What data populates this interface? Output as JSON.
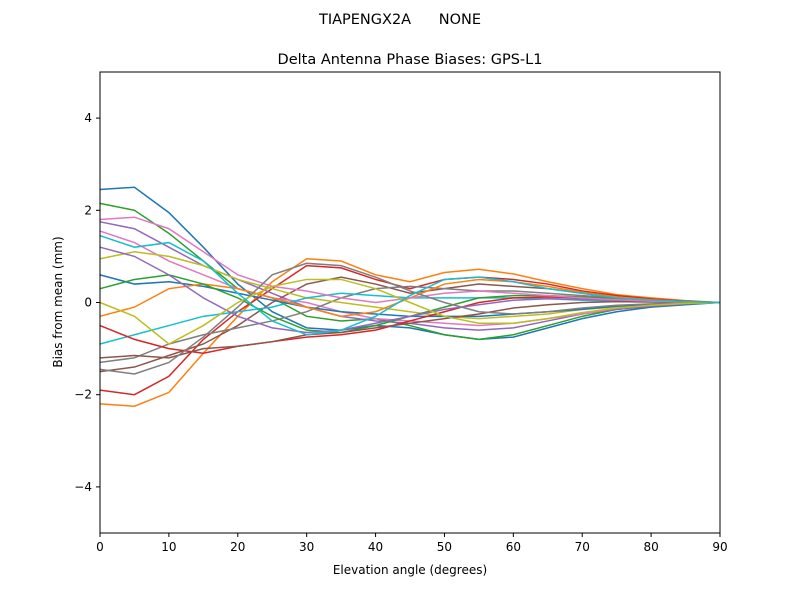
{
  "suptitle": "TIAPENGX2A      NONE",
  "chart_data": {
    "type": "line",
    "title": "Delta Antenna Phase Biases: GPS-L1",
    "xlabel": "Elevation angle (degrees)",
    "ylabel": "Bias from mean (mm)",
    "xlim": [
      0,
      90
    ],
    "ylim": [
      -5,
      5
    ],
    "xticks": [
      "0",
      "10",
      "20",
      "30",
      "40",
      "50",
      "60",
      "70",
      "80",
      "90"
    ],
    "yticks": [
      "−4",
      "−2",
      "0",
      "2",
      "4"
    ],
    "grid": false,
    "colors": [
      "#1f77b4",
      "#ff7f0e",
      "#2ca02c",
      "#d62728",
      "#9467bd",
      "#8c564b",
      "#e377c2",
      "#7f7f7f",
      "#bcbd22",
      "#17becf"
    ],
    "x": [
      0,
      5,
      10,
      15,
      20,
      25,
      30,
      35,
      40,
      45,
      50,
      55,
      60,
      65,
      70,
      75,
      80,
      85,
      90
    ],
    "series": [
      {
        "values": [
          2.45,
          2.5,
          1.95,
          1.2,
          0.4,
          -0.2,
          -0.55,
          -0.6,
          -0.5,
          -0.55,
          -0.7,
          -0.8,
          -0.75,
          -0.55,
          -0.35,
          -0.2,
          -0.1,
          -0.05,
          0
        ]
      },
      {
        "values": [
          -2.2,
          -2.25,
          -1.95,
          -1.1,
          -0.3,
          0.45,
          0.95,
          0.9,
          0.6,
          0.45,
          0.65,
          0.72,
          0.62,
          0.45,
          0.3,
          0.17,
          0.1,
          0.04,
          0
        ]
      },
      {
        "values": [
          2.15,
          2.0,
          1.5,
          0.9,
          0.3,
          0.1,
          -0.3,
          -0.4,
          -0.35,
          -0.5,
          -0.7,
          -0.8,
          -0.7,
          -0.5,
          -0.3,
          -0.15,
          -0.08,
          -0.03,
          0
        ]
      },
      {
        "values": [
          -1.9,
          -2.0,
          -1.6,
          -0.8,
          -0.2,
          0.3,
          0.8,
          0.75,
          0.5,
          0.3,
          0.5,
          0.55,
          0.5,
          0.4,
          0.25,
          0.15,
          0.08,
          0.03,
          0
        ]
      },
      {
        "values": [
          1.75,
          1.6,
          1.2,
          0.8,
          0.5,
          0.2,
          -0.1,
          -0.3,
          -0.4,
          -0.45,
          -0.55,
          -0.6,
          -0.55,
          -0.4,
          -0.25,
          -0.15,
          -0.08,
          -0.03,
          0
        ]
      },
      {
        "values": [
          -1.5,
          -1.4,
          -1.15,
          -0.9,
          -0.5,
          0.0,
          0.4,
          0.55,
          0.4,
          0.2,
          0.3,
          0.4,
          0.35,
          0.3,
          0.2,
          0.1,
          0.05,
          0.02,
          0
        ]
      },
      {
        "values": [
          1.55,
          1.3,
          0.9,
          0.6,
          0.3,
          0.1,
          0.0,
          -0.2,
          -0.35,
          -0.4,
          -0.45,
          -0.5,
          -0.45,
          -0.35,
          -0.25,
          -0.12,
          -0.06,
          -0.02,
          0
        ]
      },
      {
        "values": [
          -1.3,
          -1.2,
          -0.9,
          -0.7,
          -0.55,
          -0.4,
          -0.2,
          0.1,
          0.3,
          0.35,
          0.3,
          0.25,
          0.25,
          0.2,
          0.15,
          0.1,
          0.05,
          0.02,
          0
        ]
      },
      {
        "values": [
          0.95,
          1.1,
          1.0,
          0.8,
          0.5,
          0.3,
          0.1,
          0.0,
          -0.1,
          -0.2,
          -0.3,
          -0.35,
          -0.3,
          -0.25,
          -0.15,
          -0.1,
          -0.05,
          -0.02,
          0
        ]
      },
      {
        "values": [
          -0.9,
          -0.7,
          -0.5,
          -0.3,
          -0.2,
          -0.1,
          0.1,
          0.2,
          0.15,
          0.1,
          0.1,
          0.1,
          0.1,
          0.08,
          0.05,
          0.03,
          0.02,
          0.01,
          0
        ]
      },
      {
        "values": [
          0.6,
          0.4,
          0.45,
          0.35,
          0.2,
          0.05,
          -0.1,
          -0.2,
          -0.25,
          -0.3,
          -0.3,
          -0.3,
          -0.25,
          -0.2,
          -0.15,
          -0.08,
          -0.04,
          -0.02,
          0
        ]
      },
      {
        "values": [
          -0.3,
          -0.1,
          0.3,
          0.4,
          0.3,
          0.1,
          -0.1,
          -0.3,
          -0.2,
          0.1,
          0.4,
          0.5,
          0.45,
          0.35,
          0.22,
          0.12,
          0.06,
          0.02,
          0
        ]
      },
      {
        "values": [
          0.3,
          0.5,
          0.6,
          0.4,
          0.1,
          -0.3,
          -0.6,
          -0.65,
          -0.5,
          -0.3,
          -0.1,
          0.1,
          0.15,
          0.15,
          0.12,
          0.08,
          0.04,
          0.02,
          0
        ]
      },
      {
        "values": [
          -0.5,
          -0.8,
          -1.0,
          -1.1,
          -0.95,
          -0.85,
          -0.75,
          -0.7,
          -0.6,
          -0.4,
          -0.2,
          0.0,
          0.1,
          0.12,
          0.1,
          0.06,
          0.03,
          0.01,
          0
        ]
      },
      {
        "values": [
          1.2,
          1.0,
          0.6,
          0.1,
          -0.3,
          -0.55,
          -0.65,
          -0.6,
          -0.45,
          -0.3,
          -0.15,
          -0.05,
          0.05,
          0.08,
          0.07,
          0.05,
          0.03,
          0.01,
          0
        ]
      },
      {
        "values": [
          -1.2,
          -1.15,
          -1.2,
          -1.0,
          -0.95,
          -0.85,
          -0.7,
          -0.65,
          -0.55,
          -0.45,
          -0.35,
          -0.25,
          -0.12,
          -0.05,
          0.0,
          0.02,
          0.01,
          0.0,
          0
        ]
      },
      {
        "values": [
          1.8,
          1.85,
          1.6,
          1.1,
          0.6,
          0.35,
          0.25,
          0.1,
          0.0,
          0.1,
          0.2,
          0.25,
          0.2,
          0.15,
          0.1,
          0.06,
          0.03,
          0.01,
          0
        ]
      },
      {
        "values": [
          -1.45,
          -1.55,
          -1.3,
          -0.75,
          -0.1,
          0.6,
          0.85,
          0.8,
          0.55,
          0.25,
          0.0,
          -0.2,
          -0.25,
          -0.2,
          -0.12,
          -0.06,
          -0.03,
          -0.01,
          0
        ]
      },
      {
        "values": [
          0.0,
          -0.3,
          -0.9,
          -0.5,
          0.0,
          0.35,
          0.5,
          0.5,
          0.3,
          0.0,
          -0.3,
          -0.45,
          -0.45,
          -0.35,
          -0.22,
          -0.12,
          -0.06,
          -0.02,
          0
        ]
      },
      {
        "values": [
          1.45,
          1.2,
          1.3,
          0.9,
          0.2,
          -0.4,
          -0.7,
          -0.6,
          -0.3,
          0.15,
          0.5,
          0.55,
          0.45,
          0.3,
          0.2,
          0.1,
          0.05,
          0.02,
          0
        ]
      }
    ]
  }
}
